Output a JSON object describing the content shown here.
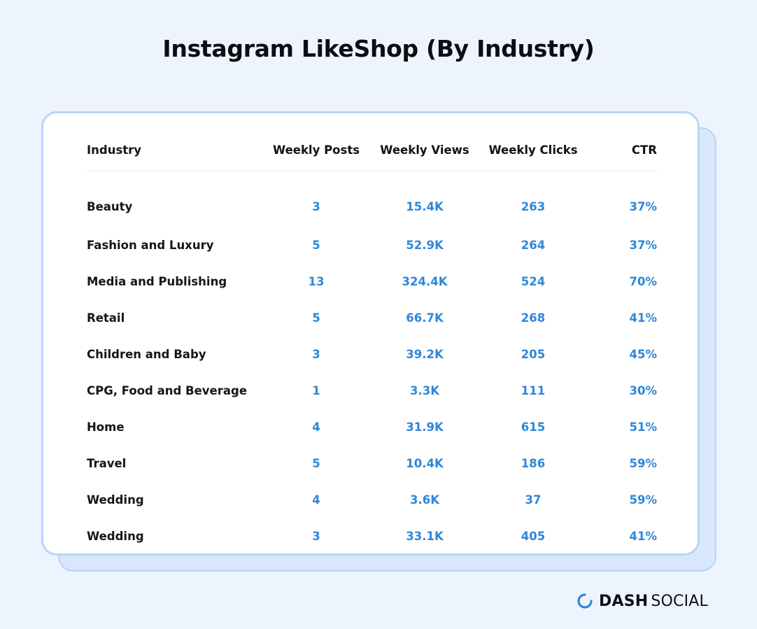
{
  "title": "Instagram LikeShop (By Industry)",
  "colors": {
    "background": "#eef4fe",
    "accent": "#2f87d8",
    "card_border": "#b9d5f8",
    "text": "#111118"
  },
  "chart_data": {
    "type": "table",
    "title": "Instagram LikeShop (By Industry)",
    "columns": [
      "Industry",
      "Weekly Posts",
      "Weekly Views",
      "Weekly Clicks",
      "CTR"
    ],
    "rows": [
      [
        "Beauty",
        "3",
        "15.4K",
        "263",
        "37%"
      ],
      [
        "Fashion and Luxury",
        "5",
        "52.9K",
        "264",
        "37%"
      ],
      [
        "Media and Publishing",
        "13",
        "324.4K",
        "524",
        "70%"
      ],
      [
        "Retail",
        "5",
        "66.7K",
        "268",
        "41%"
      ],
      [
        "Children and Baby",
        "3",
        "39.2K",
        "205",
        "45%"
      ],
      [
        "CPG, Food and Beverage",
        "1",
        "3.3K",
        "111",
        "30%"
      ],
      [
        "Home",
        "4",
        "31.9K",
        "615",
        "51%"
      ],
      [
        "Travel",
        "5",
        "10.4K",
        "186",
        "59%"
      ],
      [
        "Wedding",
        "4",
        "3.6K",
        "37",
        "59%"
      ],
      [
        "Wedding",
        "3",
        "33.1K",
        "405",
        "41%"
      ]
    ]
  },
  "brand": {
    "icon": "dash-social-logo-icon",
    "name_bold": "DASH",
    "name_light": "SOCIAL"
  }
}
